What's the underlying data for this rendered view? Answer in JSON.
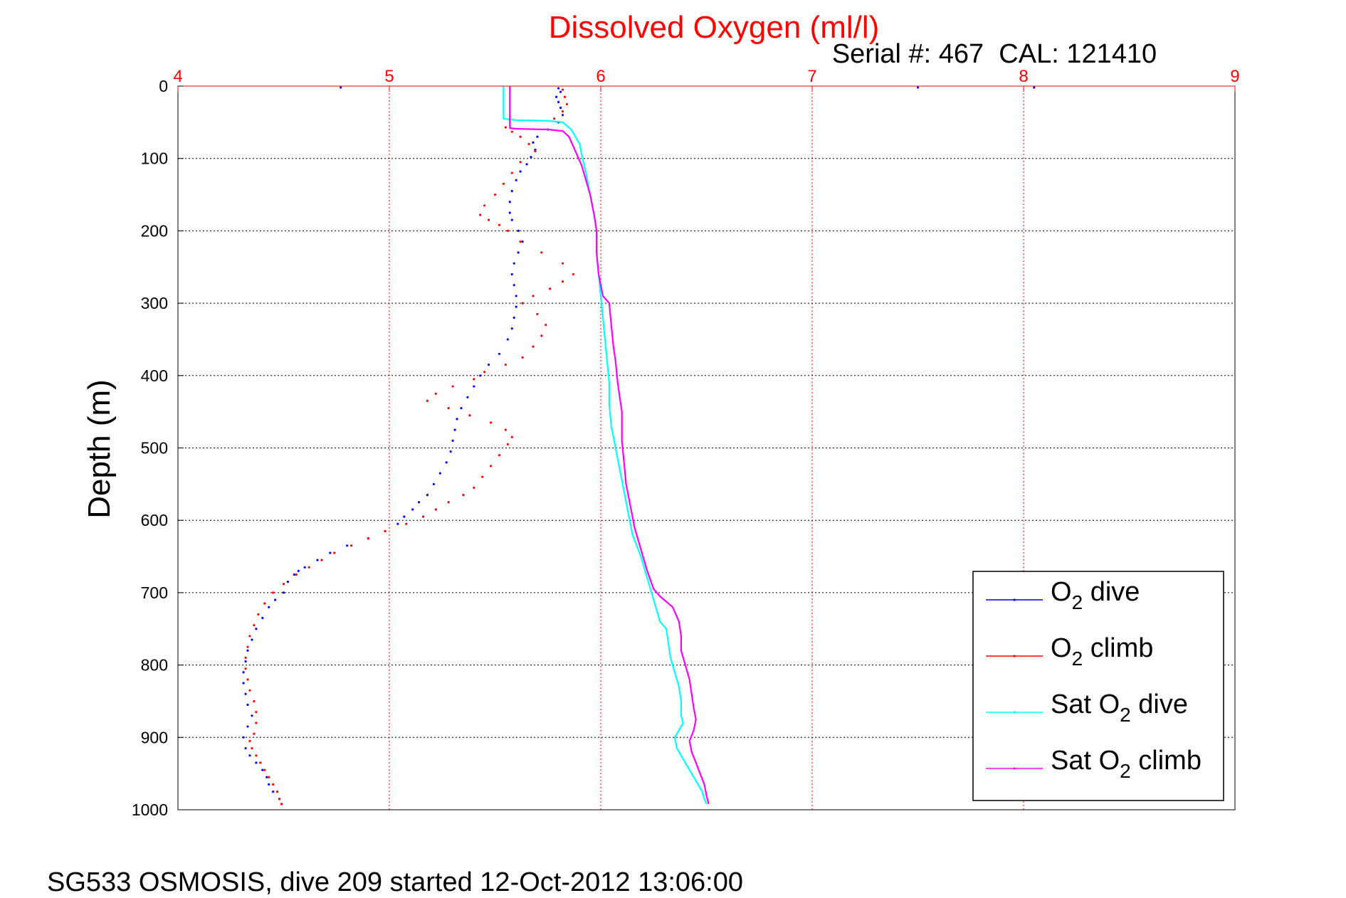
{
  "chart_data": {
    "type": "line",
    "title": "Dissolved Oxygen (ml/l)",
    "subtitle": "Serial #: 467  CAL: 121410",
    "ylabel": "Depth (m)",
    "xlabel": "",
    "footer": "SG533 OSMOSIS, dive 209 started 12-Oct-2012 13:06:00",
    "xlim": [
      4,
      9
    ],
    "ylim": [
      0,
      1000
    ],
    "y_reversed": true,
    "x_axis_position": "top",
    "xticks": [
      "4",
      "5",
      "6",
      "7",
      "8",
      "9"
    ],
    "yticks": [
      "0",
      "100",
      "200",
      "300",
      "400",
      "500",
      "600",
      "700",
      "800",
      "900",
      "1000"
    ],
    "grid": true,
    "legend_position": "bottom-right",
    "colors": {
      "title": "#ff0000",
      "x_axis": "#ff0000",
      "grid_x": "#ff0000",
      "grid_y": "#000000"
    },
    "series": [
      {
        "name": "O2 dive",
        "legend_main": "O",
        "legend_sub": "2",
        "legend_rest": " dive",
        "color": "#0000ff",
        "style": "dots",
        "points": [
          [
            5.8,
            3
          ],
          [
            5.81,
            8
          ],
          [
            5.79,
            15
          ],
          [
            5.8,
            22
          ],
          [
            5.81,
            30
          ],
          [
            5.82,
            40
          ],
          [
            5.8,
            50
          ],
          [
            5.75,
            60
          ],
          [
            5.7,
            70
          ],
          [
            5.68,
            78
          ],
          [
            5.69,
            88
          ],
          [
            5.67,
            98
          ],
          [
            5.65,
            108
          ],
          [
            5.62,
            118
          ],
          [
            5.6,
            130
          ],
          [
            5.58,
            145
          ],
          [
            5.57,
            160
          ],
          [
            5.57,
            175
          ],
          [
            5.58,
            185
          ],
          [
            5.61,
            200
          ],
          [
            5.63,
            215
          ],
          [
            5.61,
            230
          ],
          [
            5.59,
            245
          ],
          [
            5.58,
            260
          ],
          [
            5.59,
            275
          ],
          [
            5.6,
            290
          ],
          [
            5.6,
            305
          ],
          [
            5.59,
            320
          ],
          [
            5.58,
            335
          ],
          [
            5.56,
            350
          ],
          [
            5.52,
            370
          ],
          [
            5.47,
            385
          ],
          [
            5.43,
            400
          ],
          [
            5.4,
            415
          ],
          [
            5.37,
            430
          ],
          [
            5.34,
            445
          ],
          [
            5.32,
            460
          ],
          [
            5.31,
            475
          ],
          [
            5.3,
            490
          ],
          [
            5.29,
            505
          ],
          [
            5.27,
            520
          ],
          [
            5.24,
            535
          ],
          [
            5.21,
            550
          ],
          [
            5.18,
            565
          ],
          [
            5.14,
            575
          ],
          [
            5.11,
            585
          ],
          [
            5.07,
            595
          ],
          [
            5.04,
            605
          ],
          [
            4.98,
            615
          ],
          [
            4.9,
            625
          ],
          [
            4.8,
            635
          ],
          [
            4.72,
            645
          ],
          [
            4.66,
            655
          ],
          [
            4.6,
            665
          ],
          [
            4.55,
            675
          ],
          [
            4.52,
            685
          ],
          [
            4.57,
            670
          ],
          [
            4.5,
            700
          ],
          [
            4.46,
            710
          ],
          [
            4.43,
            720
          ],
          [
            4.4,
            735
          ],
          [
            4.37,
            750
          ],
          [
            4.35,
            765
          ],
          [
            4.33,
            780
          ],
          [
            4.32,
            795
          ],
          [
            4.31,
            810
          ],
          [
            4.31,
            825
          ],
          [
            4.32,
            840
          ],
          [
            4.33,
            855
          ],
          [
            4.35,
            870
          ],
          [
            4.33,
            885
          ],
          [
            4.31,
            900
          ],
          [
            4.32,
            915
          ],
          [
            4.34,
            925
          ],
          [
            4.37,
            935
          ],
          [
            4.4,
            945
          ],
          [
            4.42,
            955
          ],
          [
            4.43,
            965
          ],
          [
            4.45,
            975
          ],
          [
            4.48,
            985
          ],
          [
            4.49,
            992
          ],
          [
            4.77,
            2
          ],
          [
            7.5,
            2
          ],
          [
            8.05,
            2
          ]
        ]
      },
      {
        "name": "O2 climb",
        "legend_main": "O",
        "legend_sub": "2",
        "legend_rest": " climb",
        "color": "#ff0000",
        "style": "dots",
        "points": [
          [
            5.82,
            5
          ],
          [
            5.83,
            15
          ],
          [
            5.84,
            25
          ],
          [
            5.82,
            35
          ],
          [
            5.78,
            45
          ],
          [
            5.55,
            57
          ],
          [
            5.58,
            63
          ],
          [
            5.62,
            70
          ],
          [
            5.66,
            80
          ],
          [
            5.69,
            90
          ],
          [
            5.62,
            105
          ],
          [
            5.58,
            120
          ],
          [
            5.54,
            135
          ],
          [
            5.5,
            150
          ],
          [
            5.45,
            165
          ],
          [
            5.43,
            178
          ],
          [
            5.47,
            185
          ],
          [
            5.52,
            192
          ],
          [
            5.56,
            200
          ],
          [
            5.62,
            215
          ],
          [
            5.72,
            230
          ],
          [
            5.82,
            245
          ],
          [
            5.87,
            260
          ],
          [
            5.82,
            270
          ],
          [
            5.76,
            280
          ],
          [
            5.68,
            290
          ],
          [
            5.63,
            300
          ],
          [
            5.7,
            315
          ],
          [
            5.74,
            330
          ],
          [
            5.72,
            345
          ],
          [
            5.68,
            360
          ],
          [
            5.63,
            375
          ],
          [
            5.55,
            385
          ],
          [
            5.45,
            395
          ],
          [
            5.4,
            405
          ],
          [
            5.3,
            415
          ],
          [
            5.22,
            425
          ],
          [
            5.18,
            435
          ],
          [
            5.28,
            445
          ],
          [
            5.38,
            455
          ],
          [
            5.48,
            465
          ],
          [
            5.55,
            475
          ],
          [
            5.58,
            485
          ],
          [
            5.56,
            495
          ],
          [
            5.52,
            510
          ],
          [
            5.48,
            525
          ],
          [
            5.44,
            540
          ],
          [
            5.4,
            555
          ],
          [
            5.35,
            565
          ],
          [
            5.28,
            575
          ],
          [
            5.22,
            585
          ],
          [
            5.16,
            595
          ],
          [
            5.08,
            605
          ],
          [
            4.98,
            615
          ],
          [
            4.9,
            625
          ],
          [
            4.82,
            635
          ],
          [
            4.74,
            645
          ],
          [
            4.68,
            655
          ],
          [
            4.62,
            665
          ],
          [
            4.56,
            675
          ],
          [
            4.5,
            688
          ],
          [
            4.45,
            700
          ],
          [
            4.41,
            715
          ],
          [
            4.38,
            730
          ],
          [
            4.36,
            745
          ],
          [
            4.34,
            760
          ],
          [
            4.33,
            775
          ],
          [
            4.32,
            790
          ],
          [
            4.32,
            805
          ],
          [
            4.33,
            820
          ],
          [
            4.34,
            835
          ],
          [
            4.36,
            850
          ],
          [
            4.37,
            865
          ],
          [
            4.37,
            880
          ],
          [
            4.36,
            895
          ],
          [
            4.34,
            905
          ],
          [
            4.35,
            915
          ],
          [
            4.37,
            925
          ],
          [
            4.39,
            935
          ],
          [
            4.41,
            945
          ],
          [
            4.43,
            955
          ],
          [
            4.45,
            965
          ],
          [
            4.47,
            975
          ],
          [
            4.48,
            985
          ],
          [
            4.49,
            992
          ]
        ]
      },
      {
        "name": "Sat O2 dive",
        "legend_main": "Sat O",
        "legend_sub": "2",
        "legend_rest": " dive",
        "color": "#00ffff",
        "style": "line",
        "points": [
          [
            5.54,
            0
          ],
          [
            5.54,
            45
          ],
          [
            5.6,
            47
          ],
          [
            5.75,
            48
          ],
          [
            5.82,
            50
          ],
          [
            5.84,
            55
          ],
          [
            5.86,
            60
          ],
          [
            5.88,
            70
          ],
          [
            5.9,
            80
          ],
          [
            5.91,
            95
          ],
          [
            5.93,
            120
          ],
          [
            5.95,
            150
          ],
          [
            5.97,
            180
          ],
          [
            5.98,
            200
          ],
          [
            5.98,
            230
          ],
          [
            5.99,
            260
          ],
          [
            6.0,
            290
          ],
          [
            6.01,
            320
          ],
          [
            6.02,
            350
          ],
          [
            6.03,
            380
          ],
          [
            6.04,
            410
          ],
          [
            6.04,
            440
          ],
          [
            6.05,
            470
          ],
          [
            6.07,
            500
          ],
          [
            6.09,
            530
          ],
          [
            6.11,
            560
          ],
          [
            6.13,
            590
          ],
          [
            6.15,
            620
          ],
          [
            6.19,
            650
          ],
          [
            6.22,
            680
          ],
          [
            6.25,
            710
          ],
          [
            6.28,
            740
          ],
          [
            6.31,
            750
          ],
          [
            6.32,
            770
          ],
          [
            6.33,
            790
          ],
          [
            6.35,
            810
          ],
          [
            6.37,
            830
          ],
          [
            6.38,
            850
          ],
          [
            6.38,
            870
          ],
          [
            6.39,
            880
          ],
          [
            6.37,
            890
          ],
          [
            6.35,
            900
          ],
          [
            6.36,
            915
          ],
          [
            6.39,
            930
          ],
          [
            6.42,
            945
          ],
          [
            6.45,
            960
          ],
          [
            6.48,
            975
          ],
          [
            6.49,
            985
          ],
          [
            6.5,
            992
          ]
        ]
      },
      {
        "name": "Sat O2 climb",
        "legend_main": "Sat O",
        "legend_sub": "2",
        "legend_rest": " climb",
        "color": "#ff00ff",
        "style": "line",
        "points": [
          [
            5.57,
            0
          ],
          [
            5.57,
            58
          ],
          [
            5.6,
            59
          ],
          [
            5.75,
            60
          ],
          [
            5.82,
            62
          ],
          [
            5.85,
            70
          ],
          [
            5.88,
            90
          ],
          [
            5.91,
            110
          ],
          [
            5.93,
            130
          ],
          [
            5.95,
            150
          ],
          [
            5.97,
            180
          ],
          [
            5.98,
            200
          ],
          [
            5.98,
            230
          ],
          [
            5.99,
            260
          ],
          [
            6.01,
            290
          ],
          [
            6.04,
            300
          ],
          [
            6.05,
            330
          ],
          [
            6.06,
            360
          ],
          [
            6.07,
            380
          ],
          [
            6.08,
            410
          ],
          [
            6.09,
            430
          ],
          [
            6.1,
            450
          ],
          [
            6.1,
            470
          ],
          [
            6.1,
            490
          ],
          [
            6.11,
            520
          ],
          [
            6.12,
            550
          ],
          [
            6.14,
            580
          ],
          [
            6.16,
            610
          ],
          [
            6.19,
            640
          ],
          [
            6.22,
            670
          ],
          [
            6.25,
            695
          ],
          [
            6.28,
            705
          ],
          [
            6.34,
            720
          ],
          [
            6.37,
            740
          ],
          [
            6.38,
            760
          ],
          [
            6.38,
            780
          ],
          [
            6.4,
            800
          ],
          [
            6.42,
            820
          ],
          [
            6.43,
            840
          ],
          [
            6.44,
            860
          ],
          [
            6.45,
            875
          ],
          [
            6.44,
            890
          ],
          [
            6.42,
            905
          ],
          [
            6.43,
            920
          ],
          [
            6.45,
            935
          ],
          [
            6.47,
            950
          ],
          [
            6.49,
            965
          ],
          [
            6.5,
            980
          ],
          [
            6.51,
            992
          ]
        ]
      }
    ]
  }
}
